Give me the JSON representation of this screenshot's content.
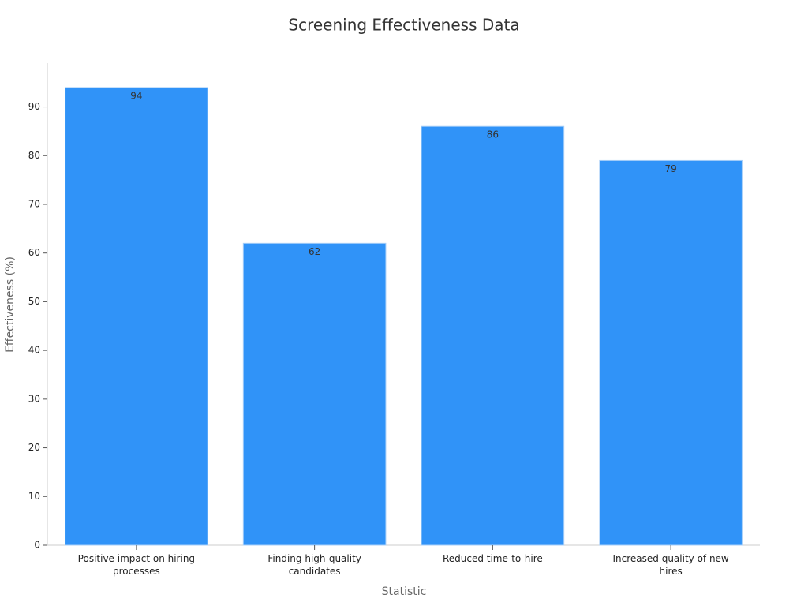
{
  "chart_data": {
    "type": "bar",
    "title": "Screening Effectiveness Data",
    "categories": [
      "Positive impact on hiring processes",
      "Finding high-quality candidates",
      "Reduced time-to-hire",
      "Increased quality of new hires"
    ],
    "values": [
      94,
      62,
      86,
      79
    ],
    "color": "#3093f8",
    "xlabel": "Statistic",
    "ylabel": "Effectiveness (%)",
    "ylim": [
      0,
      99
    ],
    "yticks": [
      0,
      10,
      20,
      30,
      40,
      50,
      60,
      70,
      80,
      90
    ],
    "grid": false
  }
}
